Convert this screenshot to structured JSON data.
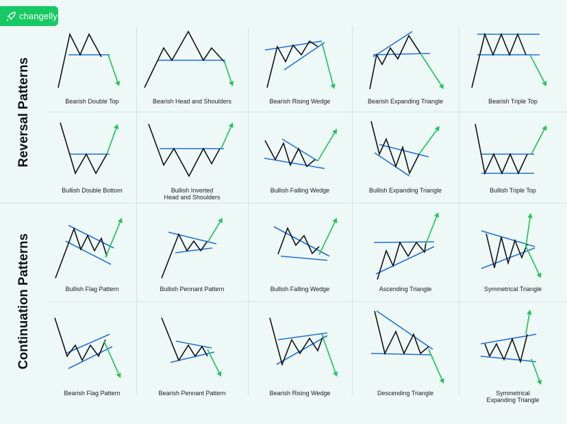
{
  "brand": {
    "name": "changelly",
    "color": "#17c964"
  },
  "sections": [
    {
      "id": "reversal",
      "title": "Reversal Patterns"
    },
    {
      "id": "continuation",
      "title": "Continuation Patterns"
    }
  ],
  "colors": {
    "price": "#111111",
    "trendline": "#1f6fd6",
    "arrow": "#22c55e",
    "divider": "#cfe5e0"
  },
  "patterns": [
    {
      "label": "Bearish Double Top",
      "direction": "down"
    },
    {
      "label": "Bearish Head and Shoulders",
      "direction": "down"
    },
    {
      "label": "Bearish Rising Wedge",
      "direction": "down"
    },
    {
      "label": "Bearish Expanding Triangle",
      "direction": "down"
    },
    {
      "label": "Bearish Triple Top",
      "direction": "down"
    },
    {
      "label": "Bullish Double Bottom",
      "direction": "up"
    },
    {
      "label": "Bullish Inverted\nHead and Shoulders",
      "direction": "up"
    },
    {
      "label": "Bullish Falling Wedge",
      "direction": "up"
    },
    {
      "label": "Bullish Expanding Triangle",
      "direction": "up"
    },
    {
      "label": "Bullish Triple Top",
      "direction": "up"
    },
    {
      "label": "Bullish Flag Pattern",
      "direction": "up"
    },
    {
      "label": "Bullish Pennant Pattern",
      "direction": "up"
    },
    {
      "label": "Bullish Falling Wedge",
      "direction": "up"
    },
    {
      "label": "Ascending Triangle",
      "direction": "up"
    },
    {
      "label": "Symmetrical Triangle",
      "direction": "both"
    },
    {
      "label": "Bearish Flag Pattern",
      "direction": "down"
    },
    {
      "label": "Bearish Pennant Pattern",
      "direction": "down"
    },
    {
      "label": "Bearish Rising Wedge",
      "direction": "down"
    },
    {
      "label": "Descending Triangle",
      "direction": "down"
    },
    {
      "label": "Symmetrical\nExpanding Triangle",
      "direction": "both"
    }
  ]
}
